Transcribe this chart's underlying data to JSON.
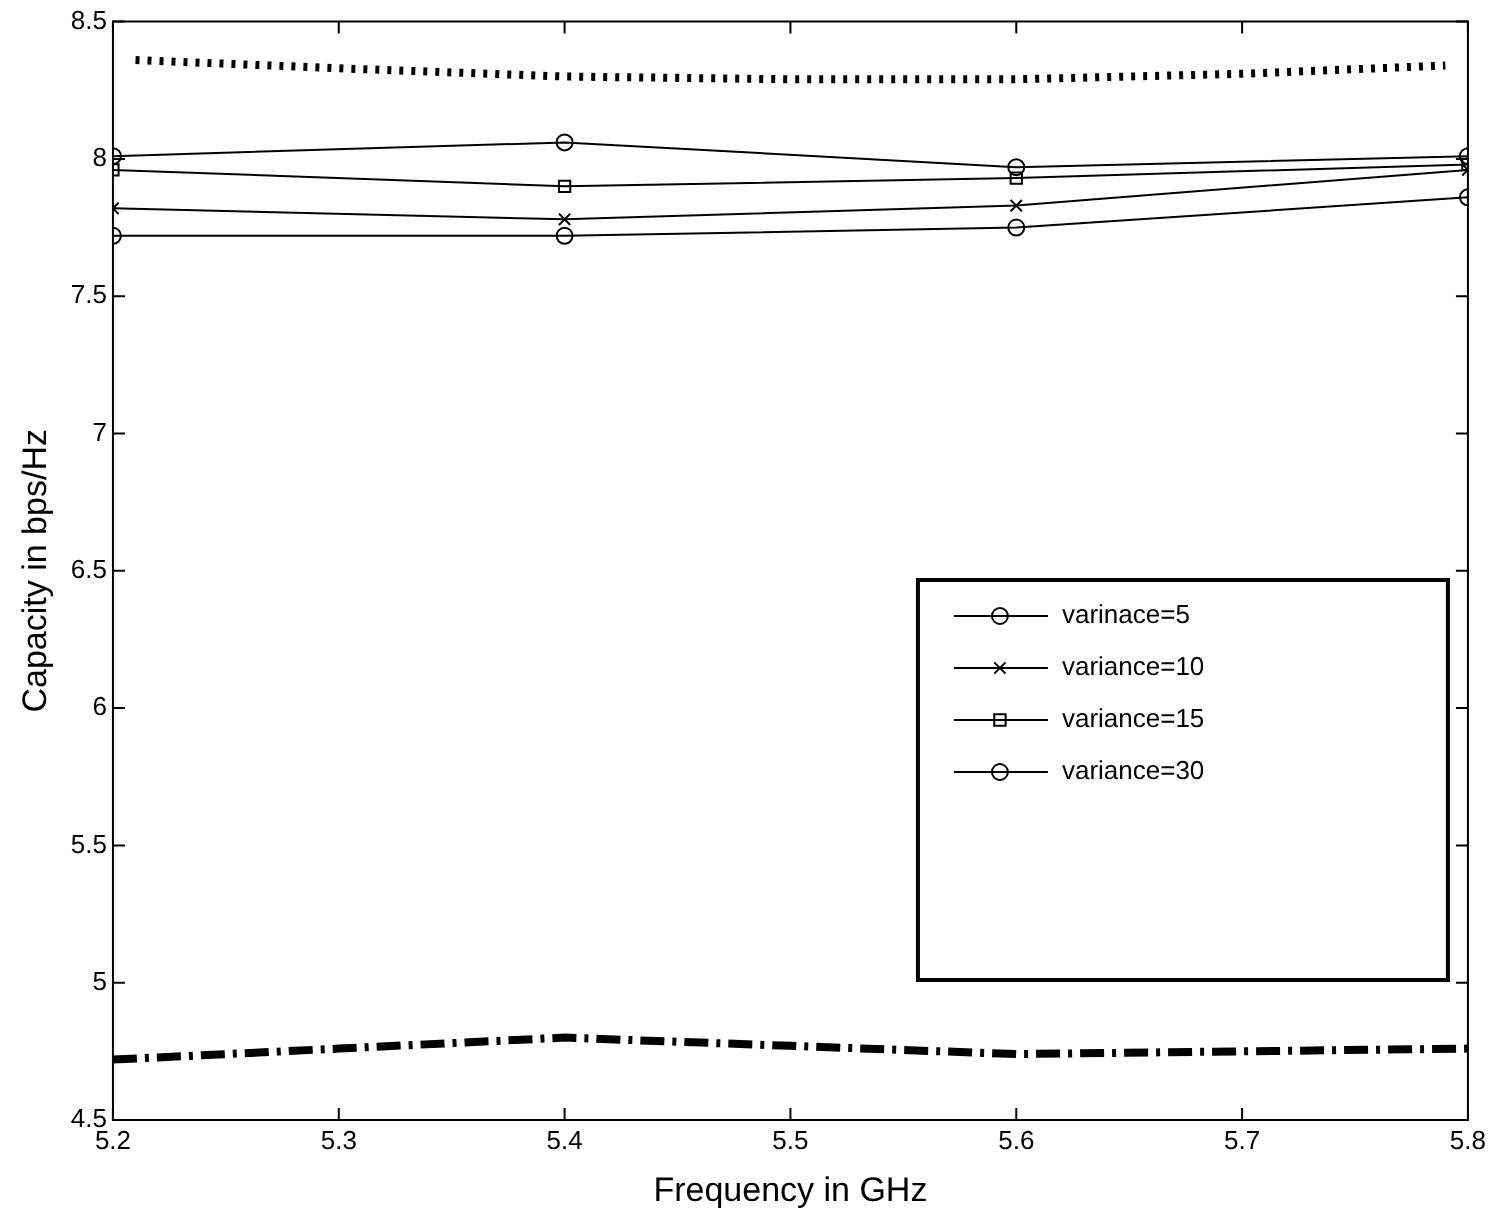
{
  "chart_data": {
    "type": "line",
    "xlabel": "Frequency in GHz",
    "ylabel": "Capacity in bps/Hz",
    "xlim": [
      5.2,
      5.8
    ],
    "xticks": [
      5.2,
      5.3,
      5.4,
      5.5,
      5.6,
      5.7,
      5.8
    ],
    "ylim": [
      4.5,
      8.5
    ],
    "yticks": [
      4.5,
      5,
      5.5,
      6,
      6.5,
      7,
      7.5,
      8,
      8.5
    ],
    "grid": false,
    "legend": "bottom right",
    "series": [
      {
        "name": "varinace=5",
        "color": "#000000",
        "marker": "circle",
        "line_style": "solid",
        "x": [
          5.2,
          5.4,
          5.6,
          5.8
        ],
        "values": [
          7.72,
          7.72,
          7.75,
          7.86
        ]
      },
      {
        "name": "variance=10",
        "color": "#000000",
        "marker": "cross",
        "line_style": "solid",
        "x": [
          5.2,
          5.4,
          5.6,
          5.8
        ],
        "values": [
          7.82,
          7.78,
          7.83,
          7.96
        ]
      },
      {
        "name": "variance=15",
        "color": "#000000",
        "marker": "square",
        "line_style": "solid",
        "x": [
          5.2,
          5.4,
          5.6,
          5.8
        ],
        "values": [
          7.96,
          7.9,
          7.93,
          7.98
        ]
      },
      {
        "name": "variance=30",
        "color": "#000000",
        "marker": "circle",
        "line_style": "solid",
        "x": [
          5.2,
          5.4,
          5.6,
          5.8
        ],
        "values": [
          8.01,
          8.06,
          7.97,
          8.01
        ]
      },
      {
        "color": "#000000",
        "marker": "none",
        "line_style": "dotted",
        "x": [
          5.21,
          5.3,
          5.4,
          5.5,
          5.6,
          5.7,
          5.79
        ],
        "values": [
          8.36,
          8.33,
          8.3,
          8.29,
          8.29,
          8.31,
          8.34
        ]
      },
      {
        "color": "#000000",
        "marker": "none",
        "line_style": "dashed",
        "x": [
          5.2,
          5.3,
          5.4,
          5.5,
          5.6,
          5.7,
          5.8
        ],
        "values": [
          4.72,
          4.76,
          4.8,
          4.77,
          4.74,
          4.75,
          4.76
        ]
      }
    ]
  }
}
